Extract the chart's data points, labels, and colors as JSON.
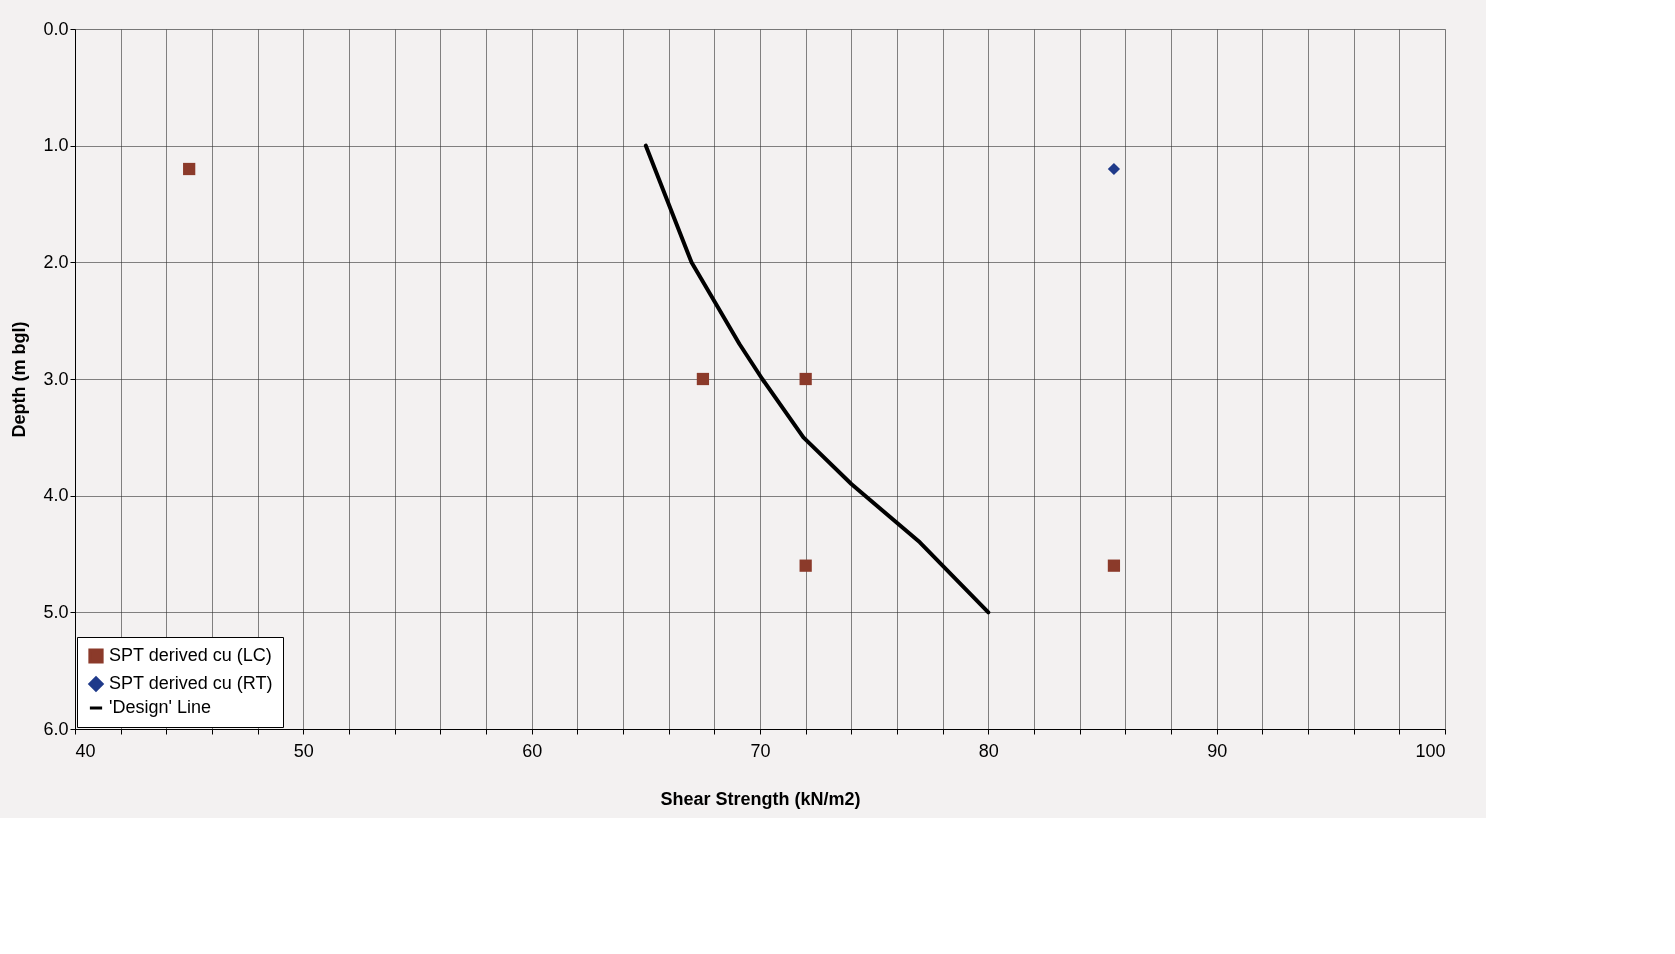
{
  "chart_data": {
    "type": "scatter",
    "xlabel": "Shear Strength (kN/m2)",
    "ylabel": "Depth (m bgl)",
    "xlim": [
      40,
      100
    ],
    "xticks": [
      40,
      {
        "value": 42,
        "label": null
      },
      {
        "value": 44,
        "label": null
      },
      {
        "value": 46,
        "label": null
      },
      {
        "value": 48,
        "label": null
      },
      50,
      {
        "value": 52,
        "label": null
      },
      {
        "value": 54,
        "label": null
      },
      {
        "value": 56,
        "label": null
      },
      {
        "value": 58,
        "label": null
      },
      60,
      {
        "value": 62,
        "label": null
      },
      {
        "value": 64,
        "label": null
      },
      {
        "value": 66,
        "label": null
      },
      {
        "value": 68,
        "label": null
      },
      70,
      {
        "value": 72,
        "label": null
      },
      {
        "value": 74,
        "label": null
      },
      {
        "value": 76,
        "label": null
      },
      {
        "value": 78,
        "label": null
      },
      80,
      {
        "value": 82,
        "label": null
      },
      {
        "value": 84,
        "label": null
      },
      {
        "value": 86,
        "label": null
      },
      {
        "value": 88,
        "label": null
      },
      90,
      {
        "value": 92,
        "label": null
      },
      {
        "value": 94,
        "label": null
      },
      {
        "value": 96,
        "label": null
      },
      {
        "value": 98,
        "label": null
      },
      100
    ],
    "ylim": [
      6,
      0
    ],
    "yticks": [
      {
        "value": 0,
        "label": "0.0"
      },
      {
        "value": 1,
        "label": "1.0"
      },
      {
        "value": 2,
        "label": "2.0"
      },
      {
        "value": 3,
        "label": "3.0"
      },
      {
        "value": 4,
        "label": "4.0"
      },
      {
        "value": 5,
        "label": "5.0"
      },
      {
        "value": 6,
        "label": "6.0"
      }
    ],
    "grid": true,
    "legend": "bottom left",
    "series": [
      {
        "name": "SPT derived cu (LC)",
        "marker": "square",
        "color": "#8b3a2a",
        "x": [
          45,
          67.5,
          72,
          72,
          85.5
        ],
        "values": [
          1.2,
          3.0,
          3.0,
          4.6,
          4.6
        ]
      },
      {
        "name": "SPT derived cu (RT)",
        "type": "line",
        "marker": "diamond",
        "color": "#1f3a8a",
        "x": [
          85.5
        ],
        "values": [
          1.2
        ]
      },
      {
        "name": "'Design' Line",
        "type": "line",
        "marker": "none",
        "color": "#000000",
        "x": [
          65,
          67,
          67.9,
          69.1,
          70.1,
          71.9,
          74,
          77,
          80
        ],
        "values": [
          1.0,
          2.0,
          2.3,
          2.7,
          3.0,
          3.5,
          3.9,
          4.4,
          5.0
        ]
      }
    ]
  }
}
